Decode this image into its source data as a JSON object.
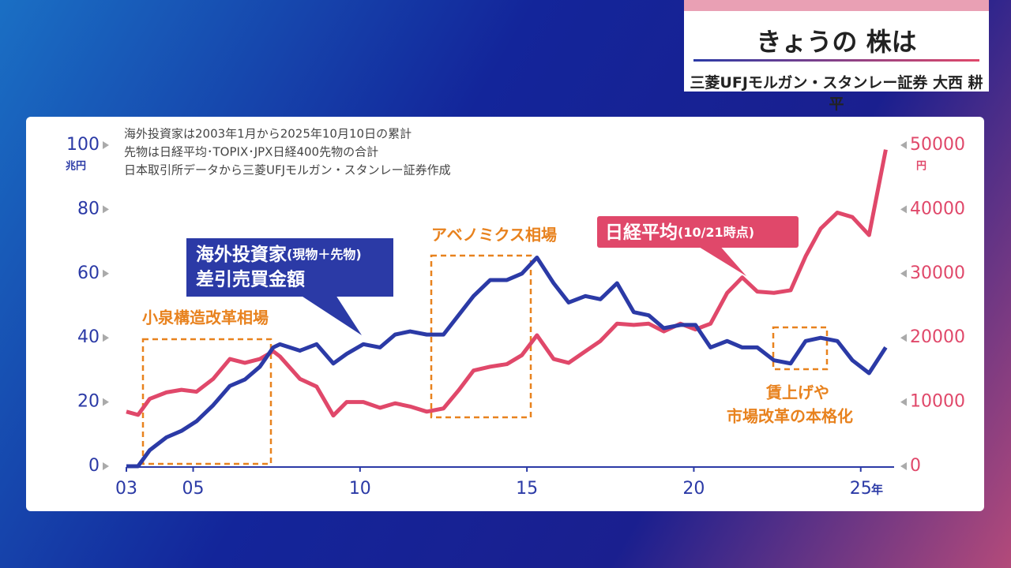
{
  "header": {
    "title": "きょうの 株は",
    "subtitle": "三菱UFJモルガン・スタンレー証券 大西 耕平"
  },
  "chart_data": {
    "type": "line",
    "notes": [
      "海外投資家は2003年1月から2025年10月10日の累計",
      "先物は日経平均･TOPIX･JPX日経400先物の合計",
      "日本取引所データから三菱UFJモルガン・スタンレー証券作成"
    ],
    "y_unit": "兆円",
    "y2_unit": "円",
    "x_unit": "年",
    "x": [
      2003.0,
      2003.35,
      2003.7,
      2004.2,
      2004.65,
      2005.1,
      2005.6,
      2006.1,
      2006.55,
      2007.0,
      2007.4,
      2007.6,
      2008.2,
      2008.7,
      2009.2,
      2009.6,
      2010.1,
      2010.6,
      2011.05,
      2011.5,
      2012.0,
      2012.5,
      2012.95,
      2013.4,
      2013.9,
      2014.4,
      2014.85,
      2015.3,
      2015.8,
      2016.25,
      2016.75,
      2017.2,
      2017.7,
      2018.2,
      2018.65,
      2019.1,
      2019.6,
      2020.05,
      2020.5,
      2021.0,
      2021.45,
      2021.9,
      2022.4,
      2022.9,
      2023.35,
      2023.8,
      2024.3,
      2024.75,
      2025.25,
      2025.75
    ],
    "series": [
      {
        "name": "海外投資家",
        "name_detail": "(現物＋先物)",
        "name_line2": "差引売買金額",
        "color": "#2b3aa6",
        "axis": "y",
        "values": [
          0,
          0,
          5,
          9,
          11,
          14,
          19,
          25,
          27,
          31,
          37,
          38,
          36,
          38,
          32,
          35,
          38,
          37,
          41,
          42,
          41,
          41,
          47,
          53,
          58,
          58,
          60,
          65,
          57,
          51,
          53,
          52,
          57,
          48,
          47,
          43,
          44,
          44,
          37,
          39,
          37,
          37,
          33,
          32,
          39,
          40,
          39,
          33,
          29,
          37
        ]
      },
      {
        "name": "日経平均",
        "name_detail": "(10/21時点)",
        "color": "#e0486a",
        "axis": "y2",
        "values": [
          8500,
          8000,
          10500,
          11500,
          11900,
          11600,
          13600,
          16700,
          16100,
          16700,
          17900,
          17100,
          13600,
          12400,
          7900,
          10000,
          10000,
          9100,
          9800,
          9300,
          8500,
          9000,
          11800,
          14900,
          15500,
          15900,
          17300,
          20400,
          16700,
          16100,
          17900,
          19500,
          22200,
          22000,
          22200,
          21000,
          22200,
          21300,
          22200,
          27000,
          29400,
          27200,
          27000,
          27400,
          32700,
          37000,
          39500,
          38800,
          36000,
          49300
        ]
      }
    ],
    "xlim": [
      2003,
      2026
    ],
    "xticks": [
      {
        "value": 2003,
        "label": "03"
      },
      {
        "value": 2005,
        "label": "05"
      },
      {
        "value": 2010,
        "label": "10"
      },
      {
        "value": 2015,
        "label": "15"
      },
      {
        "value": 2020,
        "label": "20"
      },
      {
        "value": 2025,
        "label": "25"
      }
    ],
    "ylim": [
      0,
      100
    ],
    "yticks": [
      0,
      20,
      40,
      60,
      80,
      100
    ],
    "y2lim": [
      0,
      50000
    ],
    "y2ticks": [
      0,
      10000,
      20000,
      30000,
      40000,
      50000
    ],
    "annotations": [
      "小泉構造改革相場",
      "アベノミクス相場",
      "賃上げや",
      "市場改革の本格化"
    ]
  }
}
